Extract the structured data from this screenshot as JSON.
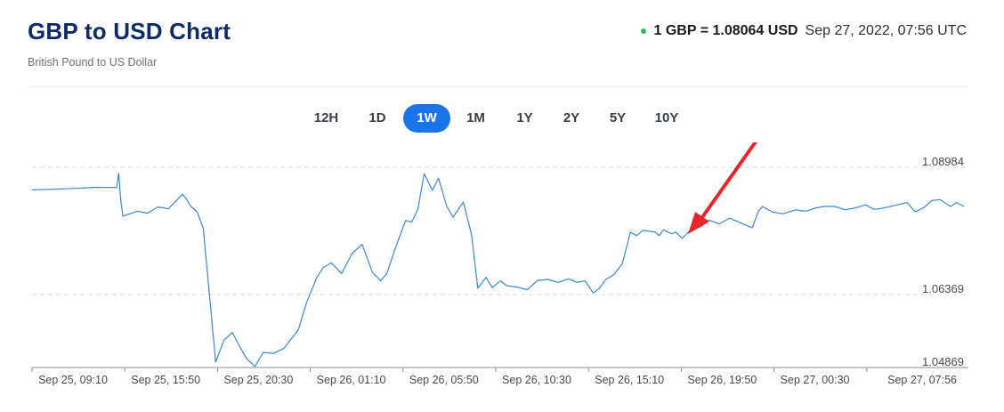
{
  "header": {
    "title": "GBP to USD Chart",
    "subtitle": "British Pound to US Dollar",
    "rate_text": "1 GBP = 1.08064 USD",
    "timestamp": "Sep 27, 2022, 07:56 UTC",
    "live_color": "#2bbf52"
  },
  "tabs": [
    {
      "label": "12H",
      "active": false
    },
    {
      "label": "1D",
      "active": false
    },
    {
      "label": "1W",
      "active": true
    },
    {
      "label": "1M",
      "active": false
    },
    {
      "label": "1Y",
      "active": false
    },
    {
      "label": "2Y",
      "active": false
    },
    {
      "label": "5Y",
      "active": false
    },
    {
      "label": "10Y",
      "active": false
    }
  ],
  "accent_color": "#1a73e8",
  "annotation": {
    "type": "red-arrow",
    "color": "#e8262a"
  },
  "chart_data": {
    "type": "line",
    "title": "GBP to USD Chart",
    "series": [
      {
        "name": "",
        "color": "#3a87d6"
      }
    ],
    "y_ticks": [
      1.08984,
      1.06369,
      1.04869
    ],
    "ylim": [
      1.04869,
      1.08984
    ],
    "grid": "dashed horizontal lines at upper and middle ticks",
    "x_ticks": [
      "Sep 25, 09:10",
      "Sep 25, 15:50",
      "Sep 25, 20:30",
      "Sep 26, 01:10",
      "Sep 26, 05:50",
      "Sep 26, 10:30",
      "Sep 26, 15:10",
      "Sep 26, 19:50",
      "Sep 27, 00:30",
      "Sep 27, 07:56"
    ],
    "x": [
      0,
      4.5,
      10.5,
      15,
      20.5,
      21,
      21.5,
      22,
      25.5,
      28,
      30.5,
      33,
      36.5,
      37.5,
      38.5,
      40,
      41.5,
      44.5,
      46.5,
      48.5,
      50.5,
      52,
      54,
      56,
      58.5,
      61,
      64.5,
      66.5,
      69,
      70.5,
      72.5,
      75,
      77.5,
      80,
      82.5,
      84.5,
      86,
      88,
      90.5,
      92,
      93.5,
      95,
      97,
      98.5,
      100.5,
      102,
      104.5,
      106.5,
      108,
      110,
      111.5,
      113.5,
      115,
      117.5,
      120,
      122.5,
      125,
      127.5,
      130,
      132,
      134,
      136,
      137.5,
      139,
      141,
      143,
      145,
      146.5,
      148,
      151,
      152,
      153,
      154,
      155,
      156,
      157.5,
      160,
      162,
      164,
      166.5,
      169,
      172,
      174.5,
      176,
      177,
      179.5,
      182,
      185,
      187.5,
      190,
      192,
      194.5,
      197,
      199.5,
      202,
      204,
      206,
      209,
      212,
      214,
      216,
      218,
      220,
      222.5,
      224,
      225.8
    ],
    "y": [
      1.0852,
      1.0853,
      1.0855,
      1.0857,
      1.0857,
      1.0886,
      1.083,
      1.0798,
      1.0808,
      1.0804,
      1.0817,
      1.0813,
      1.0843,
      1.0832,
      1.0818,
      1.0807,
      1.0773,
      1.0498,
      1.0543,
      1.0559,
      1.0527,
      1.0505,
      1.0489,
      1.0518,
      1.0516,
      1.0526,
      1.0564,
      1.062,
      1.0672,
      1.0692,
      1.0702,
      1.068,
      1.0721,
      1.074,
      1.0682,
      1.0665,
      1.0681,
      1.0731,
      1.0789,
      1.0786,
      1.0812,
      1.0885,
      1.0851,
      1.0876,
      1.0818,
      1.0796,
      1.0827,
      1.076,
      1.065,
      1.0672,
      1.0651,
      1.0665,
      1.0655,
      1.0652,
      1.0647,
      1.0666,
      1.0668,
      1.0662,
      1.0669,
      1.0662,
      1.0665,
      1.064,
      1.065,
      1.0668,
      1.0678,
      1.07,
      1.0765,
      1.0758,
      1.0769,
      1.0765,
      1.0758,
      1.077,
      1.0765,
      1.0762,
      1.0765,
      1.0752,
      1.0774,
      1.0776,
      1.079,
      1.0782,
      1.0794,
      1.0783,
      1.0774,
      1.0808,
      1.0818,
      1.0806,
      1.0803,
      1.0811,
      1.0808,
      1.0815,
      1.0818,
      1.0818,
      1.0811,
      1.0815,
      1.0821,
      1.0812,
      1.0814,
      1.082,
      1.0826,
      1.0807,
      1.0815,
      1.083,
      1.0832,
      1.0818,
      1.0826,
      1.0818
    ]
  }
}
